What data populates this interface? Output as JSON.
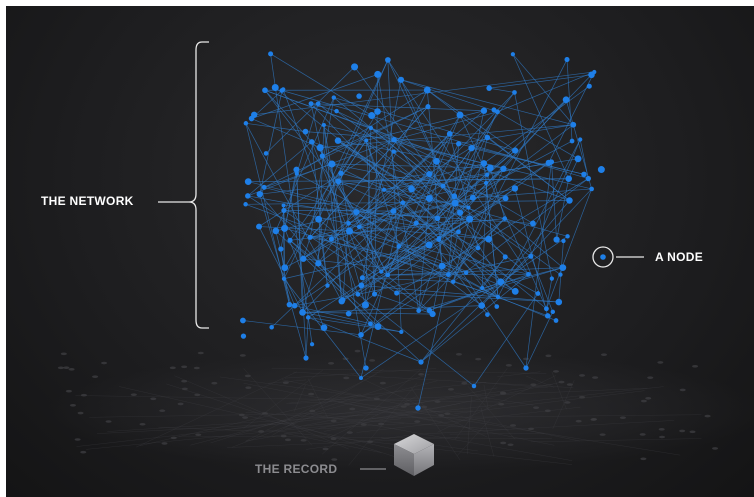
{
  "labels": {
    "network": "THE NETWORK",
    "node": "A NODE",
    "record": "THE RECORD"
  },
  "colors": {
    "background": "#1d1d1f",
    "node": "#1e7fe8",
    "edge": "#2f78c4",
    "bracket": "#e8e8e8",
    "record_label": "#8c8c90"
  }
}
